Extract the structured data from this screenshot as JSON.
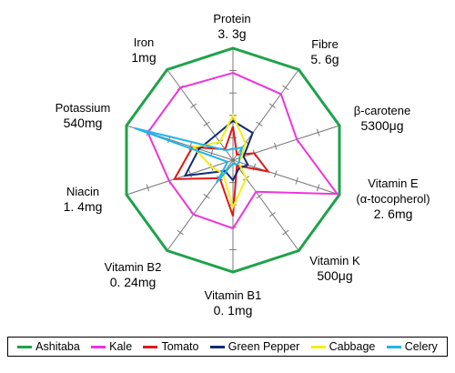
{
  "chart_data": {
    "type": "radar",
    "axes": [
      {
        "name": "Protein",
        "max": "3. 3g"
      },
      {
        "name": "Fibre",
        "max": "5. 6g"
      },
      {
        "name": "β-carotene",
        "max": "5300μg"
      },
      {
        "name": "Vitamin E\n(α-tocopherol)",
        "max": "2. 6mg"
      },
      {
        "name": "Vitamin K",
        "max": "500μg"
      },
      {
        "name": "Vitamin B1",
        "max": "0. 1mg"
      },
      {
        "name": "Vitamin B2",
        "max": "0. 24mg"
      },
      {
        "name": "Niacin",
        "max": "1. 4mg"
      },
      {
        "name": "Potassium",
        "max": "540mg"
      },
      {
        "name": "Iron",
        "max": "1mg"
      }
    ],
    "rlim": [
      0,
      1
    ],
    "ticks_per_axis": 5,
    "series": [
      {
        "name": "Ashitaba",
        "color": "#1ea24a",
        "values": [
          1,
          1,
          1,
          1,
          1,
          1,
          1,
          1,
          1,
          1
        ]
      },
      {
        "name": "Kale",
        "color": "#ee33dd",
        "values": [
          0.78,
          0.73,
          0.6,
          0.98,
          0.35,
          0.61,
          0.6,
          0.6,
          0.8,
          0.8
        ]
      },
      {
        "name": "Tomato",
        "color": "#e01818",
        "values": [
          0.3,
          0.06,
          0.2,
          0.33,
          0.06,
          0.5,
          0.2,
          0.55,
          0.38,
          0.12
        ]
      },
      {
        "name": "Green Pepper",
        "color": "#102a7a",
        "values": [
          0.35,
          0.3,
          0.1,
          0.14,
          0.09,
          0.18,
          0.12,
          0.45,
          0.32,
          0.27
        ]
      },
      {
        "name": "Cabbage",
        "color": "#f5ee10",
        "values": [
          0.4,
          0.19,
          0.08,
          0.05,
          0.2,
          0.42,
          0.15,
          0.2,
          0.37,
          0.2
        ]
      },
      {
        "name": "Celery",
        "color": "#22b4e8",
        "values": [
          0.1,
          0.14,
          0.06,
          0.06,
          0.05,
          0.03,
          0.25,
          0.05,
          0.92,
          0.11
        ]
      }
    ],
    "legend_position": "bottom",
    "grid": true
  }
}
